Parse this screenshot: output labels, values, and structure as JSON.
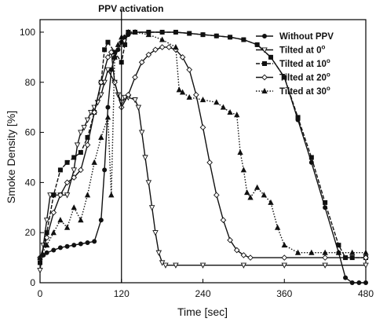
{
  "chart_data": {
    "type": "line",
    "title": "",
    "xlabel": "Time [sec]",
    "ylabel": "Smoke Density [%]",
    "xlim": [
      0,
      480
    ],
    "ylim": [
      0,
      105
    ],
    "xticks": [
      0,
      120,
      240,
      360,
      480
    ],
    "xtick_labels": [
      "0",
      "120",
      "240",
      "360",
      "480"
    ],
    "yticks": [
      0,
      20,
      40,
      60,
      80,
      100
    ],
    "ytick_labels": [
      "0",
      "20",
      "40",
      "60",
      "80",
      "100"
    ],
    "grid": false,
    "legend_position": "top-right",
    "annotation": {
      "text": "PPV activation",
      "x": 120
    },
    "series": [
      {
        "name": "Without PPV",
        "marker": "circle",
        "dash": "solid",
        "points": [
          [
            0,
            10
          ],
          [
            5,
            11
          ],
          [
            10,
            12
          ],
          [
            20,
            13
          ],
          [
            30,
            14
          ],
          [
            40,
            14.5
          ],
          [
            50,
            15
          ],
          [
            60,
            15.5
          ],
          [
            70,
            16
          ],
          [
            80,
            16.5
          ],
          [
            90,
            25
          ],
          [
            95,
            45
          ],
          [
            100,
            70
          ],
          [
            105,
            85
          ],
          [
            110,
            90
          ],
          [
            115,
            93
          ],
          [
            120,
            96
          ],
          [
            125,
            98
          ],
          [
            130,
            99
          ],
          [
            140,
            100
          ],
          [
            160,
            100
          ],
          [
            180,
            100
          ],
          [
            200,
            100
          ],
          [
            220,
            99.5
          ],
          [
            240,
            99
          ],
          [
            260,
            98.5
          ],
          [
            280,
            98
          ],
          [
            300,
            97
          ],
          [
            320,
            95
          ],
          [
            340,
            90
          ],
          [
            360,
            82
          ],
          [
            380,
            65
          ],
          [
            400,
            48
          ],
          [
            420,
            30
          ],
          [
            440,
            12
          ],
          [
            450,
            2
          ],
          [
            460,
            0
          ],
          [
            470,
            0
          ],
          [
            480,
            0
          ]
        ]
      },
      {
        "name": "Tilted at 0",
        "marker": "triangle-down",
        "dash": "solid",
        "points": [
          [
            0,
            5
          ],
          [
            5,
            15
          ],
          [
            10,
            25
          ],
          [
            15,
            35
          ],
          [
            20,
            35
          ],
          [
            30,
            35
          ],
          [
            40,
            35
          ],
          [
            50,
            45
          ],
          [
            55,
            55
          ],
          [
            60,
            60
          ],
          [
            65,
            62
          ],
          [
            70,
            65
          ],
          [
            75,
            68
          ],
          [
            80,
            70
          ],
          [
            85,
            72
          ],
          [
            90,
            75
          ],
          [
            95,
            80
          ],
          [
            100,
            85
          ],
          [
            110,
            80
          ],
          [
            115,
            75
          ],
          [
            120,
            72
          ],
          [
            125,
            74
          ],
          [
            130,
            74
          ],
          [
            140,
            73
          ],
          [
            145,
            70
          ],
          [
            150,
            60
          ],
          [
            155,
            50
          ],
          [
            160,
            40
          ],
          [
            165,
            30
          ],
          [
            170,
            20
          ],
          [
            175,
            12
          ],
          [
            180,
            8
          ],
          [
            185,
            7
          ],
          [
            200,
            7
          ],
          [
            240,
            7
          ],
          [
            300,
            7
          ],
          [
            360,
            7
          ],
          [
            420,
            7
          ],
          [
            480,
            7
          ]
        ]
      },
      {
        "name": "Tilted at 10",
        "marker": "square",
        "dash": "dash",
        "points": [
          [
            0,
            8
          ],
          [
            10,
            20
          ],
          [
            20,
            35
          ],
          [
            30,
            45
          ],
          [
            40,
            48
          ],
          [
            50,
            50
          ],
          [
            60,
            52
          ],
          [
            70,
            58
          ],
          [
            80,
            68
          ],
          [
            90,
            80
          ],
          [
            95,
            93
          ],
          [
            100,
            96
          ],
          [
            110,
            92
          ],
          [
            120,
            88
          ],
          [
            125,
            95
          ],
          [
            130,
            100
          ],
          [
            140,
            100
          ],
          [
            160,
            100
          ],
          [
            180,
            100
          ],
          [
            200,
            100
          ],
          [
            220,
            99.5
          ],
          [
            240,
            99
          ],
          [
            260,
            98.5
          ],
          [
            280,
            98
          ],
          [
            300,
            97
          ],
          [
            320,
            95
          ],
          [
            340,
            90
          ],
          [
            360,
            82
          ],
          [
            380,
            66
          ],
          [
            400,
            50
          ],
          [
            420,
            32
          ],
          [
            440,
            15
          ],
          [
            450,
            10
          ],
          [
            460,
            10
          ],
          [
            480,
            10
          ]
        ]
      },
      {
        "name": "Tilted at 20",
        "marker": "diamond",
        "dash": "solid",
        "points": [
          [
            0,
            10
          ],
          [
            10,
            18
          ],
          [
            20,
            28
          ],
          [
            30,
            35
          ],
          [
            40,
            40
          ],
          [
            50,
            42
          ],
          [
            60,
            45
          ],
          [
            70,
            55
          ],
          [
            80,
            68
          ],
          [
            90,
            80
          ],
          [
            100,
            90
          ],
          [
            105,
            92
          ],
          [
            110,
            80
          ],
          [
            120,
            70
          ],
          [
            130,
            75
          ],
          [
            140,
            82
          ],
          [
            150,
            88
          ],
          [
            160,
            91
          ],
          [
            170,
            93
          ],
          [
            180,
            94
          ],
          [
            190,
            94
          ],
          [
            200,
            93
          ],
          [
            210,
            90
          ],
          [
            220,
            85
          ],
          [
            230,
            75
          ],
          [
            240,
            62
          ],
          [
            250,
            48
          ],
          [
            260,
            35
          ],
          [
            270,
            25
          ],
          [
            280,
            17
          ],
          [
            290,
            13
          ],
          [
            300,
            11
          ],
          [
            310,
            10
          ],
          [
            360,
            10
          ],
          [
            420,
            10
          ],
          [
            480,
            10
          ]
        ]
      },
      {
        "name": "Tilted at 30",
        "marker": "triangle-up",
        "dash": "dot",
        "points": [
          [
            0,
            10
          ],
          [
            10,
            15
          ],
          [
            20,
            20
          ],
          [
            30,
            25
          ],
          [
            40,
            22
          ],
          [
            50,
            30
          ],
          [
            60,
            25
          ],
          [
            70,
            35
          ],
          [
            80,
            48
          ],
          [
            90,
            58
          ],
          [
            100,
            66
          ],
          [
            105,
            35
          ],
          [
            110,
            90
          ],
          [
            115,
            95
          ],
          [
            120,
            98
          ],
          [
            130,
            100
          ],
          [
            140,
            100
          ],
          [
            160,
            99
          ],
          [
            180,
            97
          ],
          [
            200,
            94
          ],
          [
            205,
            77
          ],
          [
            210,
            76
          ],
          [
            220,
            74
          ],
          [
            240,
            73
          ],
          [
            260,
            72
          ],
          [
            270,
            70
          ],
          [
            280,
            68
          ],
          [
            290,
            67
          ],
          [
            295,
            52
          ],
          [
            300,
            45
          ],
          [
            305,
            36
          ],
          [
            310,
            34
          ],
          [
            320,
            38
          ],
          [
            330,
            35
          ],
          [
            340,
            32
          ],
          [
            350,
            22
          ],
          [
            360,
            15
          ],
          [
            380,
            12
          ],
          [
            400,
            12
          ],
          [
            420,
            12
          ],
          [
            440,
            12
          ],
          [
            460,
            12
          ],
          [
            480,
            12
          ]
        ]
      }
    ]
  }
}
